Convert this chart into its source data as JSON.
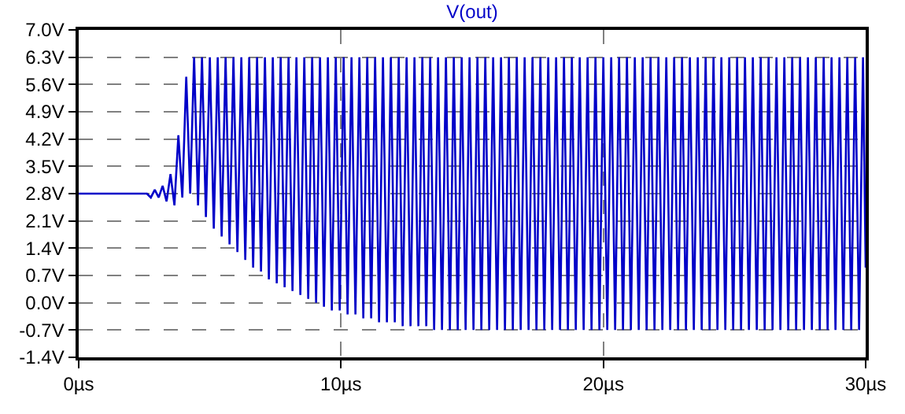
{
  "chart_data": {
    "type": "line",
    "title": "V(out)",
    "xlim": [
      0,
      30
    ],
    "xticks": [
      {
        "value": 0,
        "label": "0µs"
      },
      {
        "value": 10,
        "label": "10µs"
      },
      {
        "value": 20,
        "label": "20µs"
      },
      {
        "value": 30,
        "label": "30µs"
      }
    ],
    "ylim": [
      -1.4,
      7.0
    ],
    "yticks": [
      {
        "value": -1.4,
        "label": "-1.4V"
      },
      {
        "value": -0.7,
        "label": "-0.7V"
      },
      {
        "value": 0.0,
        "label": "0.0V"
      },
      {
        "value": 0.7,
        "label": "0.7V"
      },
      {
        "value": 1.4,
        "label": "1.4V"
      },
      {
        "value": 2.1,
        "label": "2.1V"
      },
      {
        "value": 2.8,
        "label": "2.8V"
      },
      {
        "value": 3.5,
        "label": "3.5V"
      },
      {
        "value": 4.2,
        "label": "4.2V"
      },
      {
        "value": 4.9,
        "label": "4.9V"
      },
      {
        "value": 5.6,
        "label": "5.6V"
      },
      {
        "value": 6.3,
        "label": "6.3V"
      },
      {
        "value": 7.0,
        "label": "7.0V"
      }
    ],
    "grid": true,
    "marker": "none",
    "line_style": "solid",
    "series": [
      {
        "color": "#0000c8",
        "x": [
          0,
          2.6,
          2.75,
          2.9,
          3.05,
          3.2,
          3.35,
          3.5,
          3.65,
          3.8,
          3.95,
          4.1,
          4.25,
          4.4,
          4.55,
          4.7,
          4.85,
          5.0,
          5.15,
          5.3,
          5.45,
          5.6,
          5.75,
          5.9,
          6.05,
          6.2,
          6.35,
          6.5,
          6.65,
          6.8,
          6.95,
          7.1,
          7.25,
          7.4,
          7.55,
          7.7,
          7.85,
          8.0,
          8.15,
          8.3,
          8.45,
          8.6,
          8.75,
          8.9,
          9.05,
          9.2,
          9.35,
          9.5,
          9.65,
          9.8,
          9.95,
          10.1,
          10.25,
          10.4,
          10.55,
          10.7,
          10.85,
          11.0,
          11.15,
          11.3,
          11.45,
          11.6,
          11.75,
          11.9,
          12.05,
          12.2,
          12.35,
          12.5,
          12.65,
          12.8,
          12.95,
          13.1,
          13.25,
          13.4,
          13.55,
          13.7,
          13.85,
          14.0,
          14.15,
          14.3,
          14.45,
          14.6,
          14.75,
          14.9,
          15.05,
          15.2,
          15.35,
          15.5,
          15.65,
          15.8,
          15.95,
          16.1,
          16.25,
          16.4,
          16.55,
          16.7,
          16.85,
          17.0,
          17.15,
          17.3,
          17.45,
          17.6,
          17.75,
          17.9,
          18.05,
          18.2,
          18.35,
          18.5,
          18.65,
          18.8,
          18.95,
          19.1,
          19.25,
          19.4,
          19.55,
          19.7,
          19.85,
          20.0,
          20.15,
          20.3,
          20.45,
          20.6,
          20.75,
          20.9,
          21.05,
          21.2,
          21.35,
          21.5,
          21.65,
          21.8,
          21.95,
          22.1,
          22.25,
          22.4,
          22.55,
          22.7,
          22.85,
          23.0,
          23.15,
          23.3,
          23.45,
          23.6,
          23.75,
          23.9,
          24.05,
          24.2,
          24.35,
          24.5,
          24.65,
          24.8,
          24.95,
          25.1,
          25.25,
          25.4,
          25.55,
          25.7,
          25.85,
          26.0,
          26.15,
          26.3,
          26.45,
          26.6,
          26.75,
          26.9,
          27.05,
          27.2,
          27.35,
          27.5,
          27.65,
          27.8,
          27.95,
          28.1,
          28.25,
          28.4,
          28.55,
          28.7,
          28.85,
          29.0,
          29.15,
          29.3,
          29.45,
          29.6,
          29.75,
          29.9,
          30.0
        ],
        "values": [
          2.8,
          2.8,
          2.7,
          2.9,
          2.7,
          3.0,
          2.6,
          3.3,
          2.5,
          4.3,
          2.7,
          5.8,
          2.8,
          6.3,
          2.5,
          6.3,
          2.2,
          6.3,
          1.9,
          6.3,
          1.7,
          6.3,
          1.5,
          6.3,
          1.3,
          6.3,
          1.1,
          6.3,
          0.9,
          6.3,
          0.8,
          6.3,
          0.6,
          6.3,
          0.5,
          6.3,
          0.4,
          6.3,
          0.3,
          6.3,
          0.2,
          6.3,
          0.1,
          6.3,
          0.0,
          6.3,
          -0.1,
          6.3,
          -0.2,
          6.3,
          -0.2,
          6.3,
          -0.3,
          6.3,
          -0.3,
          6.3,
          -0.4,
          6.3,
          -0.4,
          6.3,
          -0.5,
          6.3,
          -0.5,
          6.3,
          -0.5,
          6.3,
          -0.6,
          6.3,
          -0.6,
          6.3,
          -0.6,
          6.3,
          -0.6,
          6.3,
          -0.7,
          6.3,
          -0.7,
          6.3,
          -0.7,
          6.3,
          -0.7,
          6.3,
          -0.7,
          6.3,
          -0.7,
          6.3,
          -0.7,
          6.3,
          -0.7,
          6.3,
          -0.7,
          6.3,
          -0.7,
          6.3,
          -0.7,
          6.3,
          -0.7,
          6.3,
          -0.7,
          6.3,
          -0.7,
          6.3,
          -0.7,
          6.3,
          -0.7,
          6.3,
          -0.7,
          6.3,
          -0.7,
          6.3,
          -0.7,
          6.3,
          -0.7,
          6.3,
          -0.7,
          6.3,
          -0.7,
          6.3,
          -0.7,
          6.3,
          -0.7,
          6.3,
          -0.7,
          6.3,
          -0.7,
          6.3,
          -0.7,
          6.3,
          -0.7,
          6.3,
          -0.7,
          6.3,
          -0.7,
          6.3,
          -0.7,
          6.3,
          -0.7,
          6.3,
          -0.7,
          6.3,
          -0.7,
          6.3,
          -0.7,
          6.3,
          -0.7,
          6.3,
          -0.7,
          6.3,
          -0.7,
          6.3,
          -0.7,
          6.3,
          -0.7,
          6.3,
          -0.7,
          6.3,
          -0.7,
          6.3,
          -0.7,
          6.3,
          -0.7,
          6.3,
          -0.7,
          6.3,
          -0.7,
          6.3,
          -0.7,
          6.3,
          -0.7,
          6.3,
          -0.7,
          6.3,
          -0.7,
          6.3,
          -0.7,
          6.3,
          -0.7,
          6.3,
          -0.7,
          6.3,
          -0.7,
          6.3,
          -0.7,
          6.3,
          0.9
        ]
      }
    ]
  }
}
